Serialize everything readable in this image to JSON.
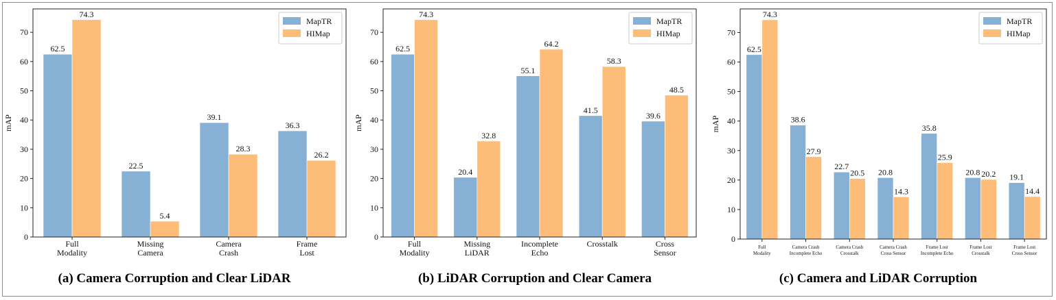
{
  "colors": {
    "MapTR": "#86b0d4",
    "HIMap": "#fdbd78",
    "axis": "#222222"
  },
  "captions": [
    "(a) Camera Corruption and Clear LiDAR",
    "(b) LiDAR Corruption and Clear Camera",
    "(c) Camera and LiDAR Corruption"
  ],
  "chart_data": [
    {
      "type": "bar",
      "title": "",
      "caption": "(a) Camera Corruption and Clear LiDAR",
      "ylabel": "mAP",
      "xlabel": "",
      "ylim": [
        0,
        78
      ],
      "yticks": [
        0,
        10,
        20,
        30,
        40,
        50,
        60,
        70
      ],
      "legend": "top-right",
      "grid": false,
      "categories": [
        [
          "Full",
          "Modality"
        ],
        [
          "Missing",
          "Camera"
        ],
        [
          "Camera",
          "Crash"
        ],
        [
          "Frame",
          "Lost"
        ]
      ],
      "series": [
        {
          "name": "MapTR",
          "values": [
            62.5,
            22.5,
            39.1,
            36.3
          ]
        },
        {
          "name": "HIMap",
          "values": [
            74.3,
            5.4,
            28.3,
            26.2
          ]
        }
      ]
    },
    {
      "type": "bar",
      "title": "",
      "caption": "(b) LiDAR Corruption and Clear Camera",
      "ylabel": "mAP",
      "xlabel": "",
      "ylim": [
        0,
        78
      ],
      "yticks": [
        0,
        10,
        20,
        30,
        40,
        50,
        60,
        70
      ],
      "legend": "top-right",
      "grid": false,
      "categories": [
        [
          "Full",
          "Modality"
        ],
        [
          "Missing",
          "LiDAR"
        ],
        [
          "Incomplete",
          "Echo"
        ],
        [
          "Crosstalk"
        ],
        [
          "Cross",
          "Sensor"
        ]
      ],
      "series": [
        {
          "name": "MapTR",
          "values": [
            62.5,
            20.4,
            55.1,
            41.5,
            39.6
          ]
        },
        {
          "name": "HIMap",
          "values": [
            74.3,
            32.8,
            64.2,
            58.3,
            48.5
          ]
        }
      ]
    },
    {
      "type": "bar",
      "title": "",
      "caption": "(c) Camera and LiDAR Corruption",
      "ylabel": "mAP",
      "xlabel": "",
      "ylim": [
        0,
        78
      ],
      "yticks": [
        0,
        10,
        20,
        30,
        40,
        50,
        60,
        70
      ],
      "legend": "top-right",
      "grid": false,
      "categories": [
        [
          "Full",
          "Modality"
        ],
        [
          "Camera Crash",
          "Incomplete Echo"
        ],
        [
          "Camera Crash",
          "Crosstalk"
        ],
        [
          "Camera Crash",
          "Cross Sensor"
        ],
        [
          "Frame Lost",
          "Incomplete Echo"
        ],
        [
          "Frame Lost",
          "Crosstalk"
        ],
        [
          "Frame Lost",
          "Cross Sensor"
        ]
      ],
      "series": [
        {
          "name": "MapTR",
          "values": [
            62.5,
            38.6,
            22.7,
            20.8,
            35.8,
            20.8,
            19.1
          ]
        },
        {
          "name": "HIMap",
          "values": [
            74.3,
            27.9,
            20.5,
            14.3,
            25.9,
            20.2,
            14.4
          ]
        }
      ]
    }
  ]
}
